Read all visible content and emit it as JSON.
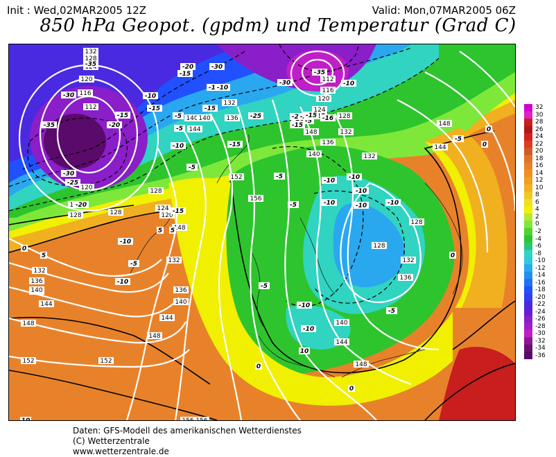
{
  "header": {
    "init": "Init : Wed,02MAR2005 12Z",
    "valid": "Valid: Mon,07MAR2005 06Z",
    "title": "850 hPa Geopot. (gpdm) und Temperatur (Grad C)"
  },
  "footer": {
    "line1": "Daten: GFS-Modell des amerikanischen Wetterdienstes",
    "line2": "(C) Wetterzentrale",
    "line3": "www.wetterzentrale.de"
  },
  "legend": {
    "labels": [
      "32",
      "30",
      "28",
      "26",
      "24",
      "22",
      "20",
      "18",
      "16",
      "14",
      "12",
      "10",
      "8",
      "6",
      "4",
      "2",
      "0",
      "-2",
      "-4",
      "-6",
      "-8",
      "-10",
      "-12",
      "-14",
      "-16",
      "-18",
      "-20",
      "-22",
      "-24",
      "-26",
      "-28",
      "-30",
      "-32",
      "-34",
      "-36"
    ],
    "colors": {
      "warm_max": "#cc00cc",
      "hot": "#c81e1e",
      "orange": "#e8822a",
      "amber": "#f0b020",
      "yellow": "#f0f000",
      "lightgreen": "#7ee83a",
      "green": "#2ec42e",
      "teal": "#30d4c0",
      "cyan": "#29a8f0",
      "blue": "#2050ff",
      "indigo": "#4a2ae0",
      "purple": "#8a1ec8",
      "magenta": "#c01ec8",
      "darkpurple": "#5a0a6a"
    }
  },
  "map": {
    "geopotential_labels": [
      {
        "text": "132"
      },
      {
        "text": "128"
      },
      {
        "text": "124"
      },
      {
        "text": "120"
      },
      {
        "text": "116"
      },
      {
        "text": "112"
      },
      {
        "text": "120"
      },
      {
        "text": "124"
      },
      {
        "text": "128"
      },
      {
        "text": "128"
      },
      {
        "text": "124"
      },
      {
        "text": "120"
      },
      {
        "text": "128"
      },
      {
        "text": "132"
      },
      {
        "text": "136"
      },
      {
        "text": "140"
      },
      {
        "text": "144"
      },
      {
        "text": "148"
      },
      {
        "text": "152"
      },
      {
        "text": "140"
      },
      {
        "text": "144"
      },
      {
        "text": "148"
      },
      {
        "text": "152"
      },
      {
        "text": "156"
      },
      {
        "text": "140"
      },
      {
        "text": "144"
      },
      {
        "text": "148"
      },
      {
        "text": "152"
      },
      {
        "text": "156"
      },
      {
        "text": "132"
      },
      {
        "text": "136"
      },
      {
        "text": "140"
      },
      {
        "text": "112"
      },
      {
        "text": "116"
      },
      {
        "text": "120"
      },
      {
        "text": "124"
      },
      {
        "text": "128"
      },
      {
        "text": "132"
      },
      {
        "text": "136"
      },
      {
        "text": "132"
      },
      {
        "text": "128"
      },
      {
        "text": "128"
      },
      {
        "text": "132"
      },
      {
        "text": "136"
      },
      {
        "text": "140"
      },
      {
        "text": "144"
      },
      {
        "text": "148"
      },
      {
        "text": "148"
      },
      {
        "text": "144"
      },
      {
        "text": "132"
      },
      {
        "text": "136"
      },
      {
        "text": "140"
      },
      {
        "text": "140"
      },
      {
        "text": "156"
      },
      {
        "text": "148"
      }
    ],
    "temperature_labels": [
      {
        "text": "-35"
      },
      {
        "text": "-30"
      },
      {
        "text": "-35"
      },
      {
        "text": "-30"
      },
      {
        "text": "-25"
      },
      {
        "text": "-20"
      },
      {
        "text": "-15"
      },
      {
        "text": "-10"
      },
      {
        "text": "-15"
      },
      {
        "text": "-20"
      },
      {
        "text": "-15"
      },
      {
        "text": "-10"
      },
      {
        "text": "-5"
      },
      {
        "text": "-10"
      },
      {
        "text": "-5"
      },
      {
        "text": "0"
      },
      {
        "text": "5"
      },
      {
        "text": "-5"
      },
      {
        "text": "-10"
      },
      {
        "text": "-15"
      },
      {
        "text": "-20"
      },
      {
        "text": "-30"
      },
      {
        "text": "-10"
      },
      {
        "text": "-15"
      },
      {
        "text": "-5"
      },
      {
        "text": "-10"
      },
      {
        "text": "-25"
      },
      {
        "text": "-20"
      },
      {
        "text": "-15"
      },
      {
        "text": "-35"
      },
      {
        "text": "-30"
      },
      {
        "text": "-10"
      },
      {
        "text": "-16"
      },
      {
        "text": "-20"
      },
      {
        "text": "-15"
      },
      {
        "text": "-10"
      },
      {
        "text": "-5"
      },
      {
        "text": "-10"
      },
      {
        "text": "-10"
      },
      {
        "text": "-10"
      },
      {
        "text": "-10"
      },
      {
        "text": "-5"
      },
      {
        "text": "-10"
      },
      {
        "text": "-10"
      },
      {
        "text": "-5"
      },
      {
        "text": "0"
      },
      {
        "text": "-5"
      },
      {
        "text": "0"
      },
      {
        "text": "0"
      },
      {
        "text": "5"
      },
      {
        "text": "10"
      },
      {
        "text": "5"
      },
      {
        "text": "10"
      },
      {
        "text": "-10"
      },
      {
        "text": "0"
      },
      {
        "text": "-5"
      },
      {
        "text": "-20"
      },
      {
        "text": "-15"
      },
      {
        "text": "-5"
      },
      {
        "text": "0"
      },
      {
        "text": "-15"
      }
    ]
  }
}
